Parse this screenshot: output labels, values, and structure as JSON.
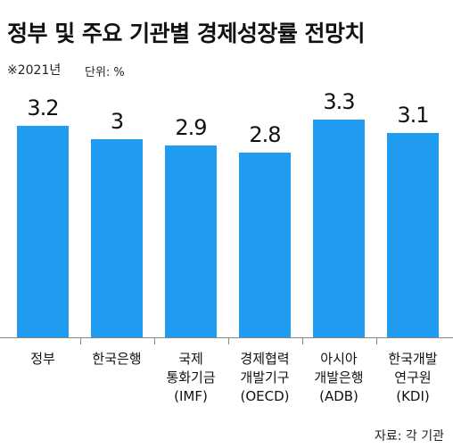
{
  "chart_data": {
    "type": "bar",
    "title": "정부 및 주요 기관별 경제성장률 전망치",
    "subtitle": "※2021년",
    "unit_label": "단위: %",
    "source": "자료: 각 기관",
    "categories": [
      "정부",
      "한국은행",
      "국제\n통화기금\n(IMF)",
      "경제협력\n개발기구\n(OECD)",
      "아시아\n개발은행\n(ADB)",
      "한국개발\n연구원\n(KDI)"
    ],
    "values": [
      3.2,
      3,
      2.9,
      2.8,
      3.3,
      3.1
    ],
    "color": "#1f9bef"
  }
}
